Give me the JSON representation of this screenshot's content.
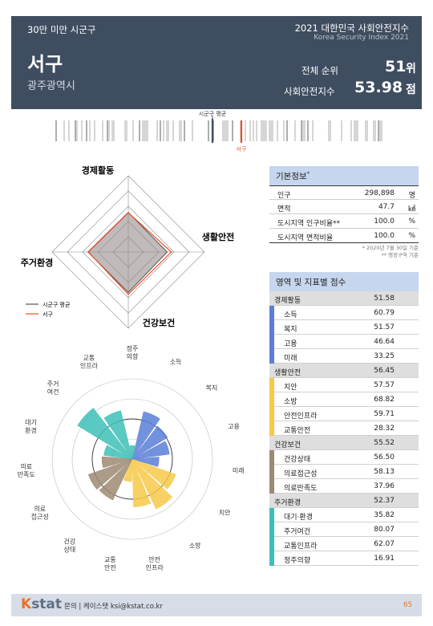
{
  "header": {
    "category": "30만 미만 시군구",
    "report_title": "2021 대한민국 사회안전지수",
    "report_subtitle": "Korea Security Index 2021",
    "district": "서구",
    "region": "광주광역시",
    "rank_label": "전체 순위",
    "rank_value": "51",
    "rank_unit": "위",
    "score_label": "사회안전지수",
    "score_value": "53.98",
    "score_unit": "점"
  },
  "distribution": {
    "avg_label": "시군구 평균",
    "self_label": "서구",
    "avg_color": "#3f4d60",
    "self_color": "#e8522c"
  },
  "radar": {
    "axes": [
      "경제활동",
      "생활안전",
      "건강보건",
      "주거환경"
    ],
    "average_label": "시군구 평균",
    "self_label": "서구",
    "average": [
      52,
      51,
      53,
      53
    ],
    "self": [
      51.58,
      56.45,
      55.52,
      52.37
    ],
    "avg_color": "#555555",
    "self_color": "#e8522c"
  },
  "polar": {
    "indicators": [
      "소득",
      "복지",
      "고용",
      "미래",
      "치안",
      "소방",
      "안전인프라",
      "교통안전",
      "건강상태",
      "의료접근성",
      "의료만족도",
      "대기환경",
      "주거여건",
      "교통인프라",
      "정주의향"
    ],
    "labels": [
      "소득",
      "복지",
      "고용",
      "미래",
      "치안",
      "소방",
      "안전\n인프라",
      "교통\n안전",
      "건강\n상태",
      "의료\n접근성",
      "의료\n만족도",
      "대기\n환경",
      "주거\n여건",
      "교통\n인프라",
      "정주\n의향"
    ],
    "values": [
      60.79,
      51.57,
      46.64,
      33.25,
      57.57,
      68.82,
      59.71,
      28.32,
      56.5,
      58.13,
      37.96,
      35.82,
      80.07,
      62.07,
      16.91
    ],
    "groups": [
      0,
      0,
      0,
      0,
      1,
      1,
      1,
      1,
      2,
      2,
      2,
      3,
      3,
      3,
      3
    ],
    "group_colors": [
      "#5b7fd8",
      "#f7c94a",
      "#9c8a72",
      "#3dbfb6"
    ]
  },
  "basic_info": {
    "title": "기본정보",
    "title_sup": "*",
    "rows": [
      {
        "label": "인구",
        "value": "298,898",
        "unit": "명"
      },
      {
        "label": "면적",
        "value": "47.7",
        "unit": "㎢"
      },
      {
        "label": "도시지역 인구비율**",
        "value": "100.0",
        "unit": "%"
      },
      {
        "label": "도시지역 면적비율",
        "value": "100.0",
        "unit": "%"
      }
    ],
    "note1": "* 2020년 7월 30일 기준",
    "note2": "** 행정구역 기준"
  },
  "domains": {
    "title": "영역 및 지표별 점수",
    "rows": [
      {
        "type": "cat",
        "label": "경제활동",
        "value": "51.58",
        "color": "#5b7fd8"
      },
      {
        "type": "ind",
        "label": "소득",
        "value": "60.79",
        "color": "#5b7fd8"
      },
      {
        "type": "ind",
        "label": "복지",
        "value": "51.57",
        "color": "#5b7fd8"
      },
      {
        "type": "ind",
        "label": "고용",
        "value": "46.64",
        "color": "#5b7fd8"
      },
      {
        "type": "ind",
        "label": "미래",
        "value": "33.25",
        "color": "#5b7fd8"
      },
      {
        "type": "cat",
        "label": "생활안전",
        "value": "56.45",
        "color": "#f7c94a"
      },
      {
        "type": "ind",
        "label": "치안",
        "value": "57.57",
        "color": "#f7c94a"
      },
      {
        "type": "ind",
        "label": "소방",
        "value": "68.82",
        "color": "#f7c94a"
      },
      {
        "type": "ind",
        "label": "안전인프라",
        "value": "59.71",
        "color": "#f7c94a"
      },
      {
        "type": "ind",
        "label": "교통안전",
        "value": "28.32",
        "color": "#f7c94a"
      },
      {
        "type": "cat",
        "label": "건강보건",
        "value": "55.52",
        "color": "#9c8a72"
      },
      {
        "type": "ind",
        "label": "건강상태",
        "value": "56.50",
        "color": "#9c8a72"
      },
      {
        "type": "ind",
        "label": "의료접근성",
        "value": "58.13",
        "color": "#9c8a72"
      },
      {
        "type": "ind",
        "label": "의료만족도",
        "value": "37.96",
        "color": "#9c8a72"
      },
      {
        "type": "cat",
        "label": "주거환경",
        "value": "52.37",
        "color": "#3dbfb6"
      },
      {
        "type": "ind",
        "label": "대기·환경",
        "value": "35.82",
        "color": "#3dbfb6"
      },
      {
        "type": "ind",
        "label": "주거여건",
        "value": "80.07",
        "color": "#3dbfb6"
      },
      {
        "type": "ind",
        "label": "교통인프라",
        "value": "62.07",
        "color": "#3dbfb6"
      },
      {
        "type": "ind",
        "label": "정주의향",
        "value": "16.91",
        "color": "#3dbfb6"
      }
    ]
  },
  "footer": {
    "logo_k": "K",
    "logo_rest": "stat",
    "contact": "문의 | 케이스탯 ksi@kstat.co.kr",
    "page": "65"
  }
}
